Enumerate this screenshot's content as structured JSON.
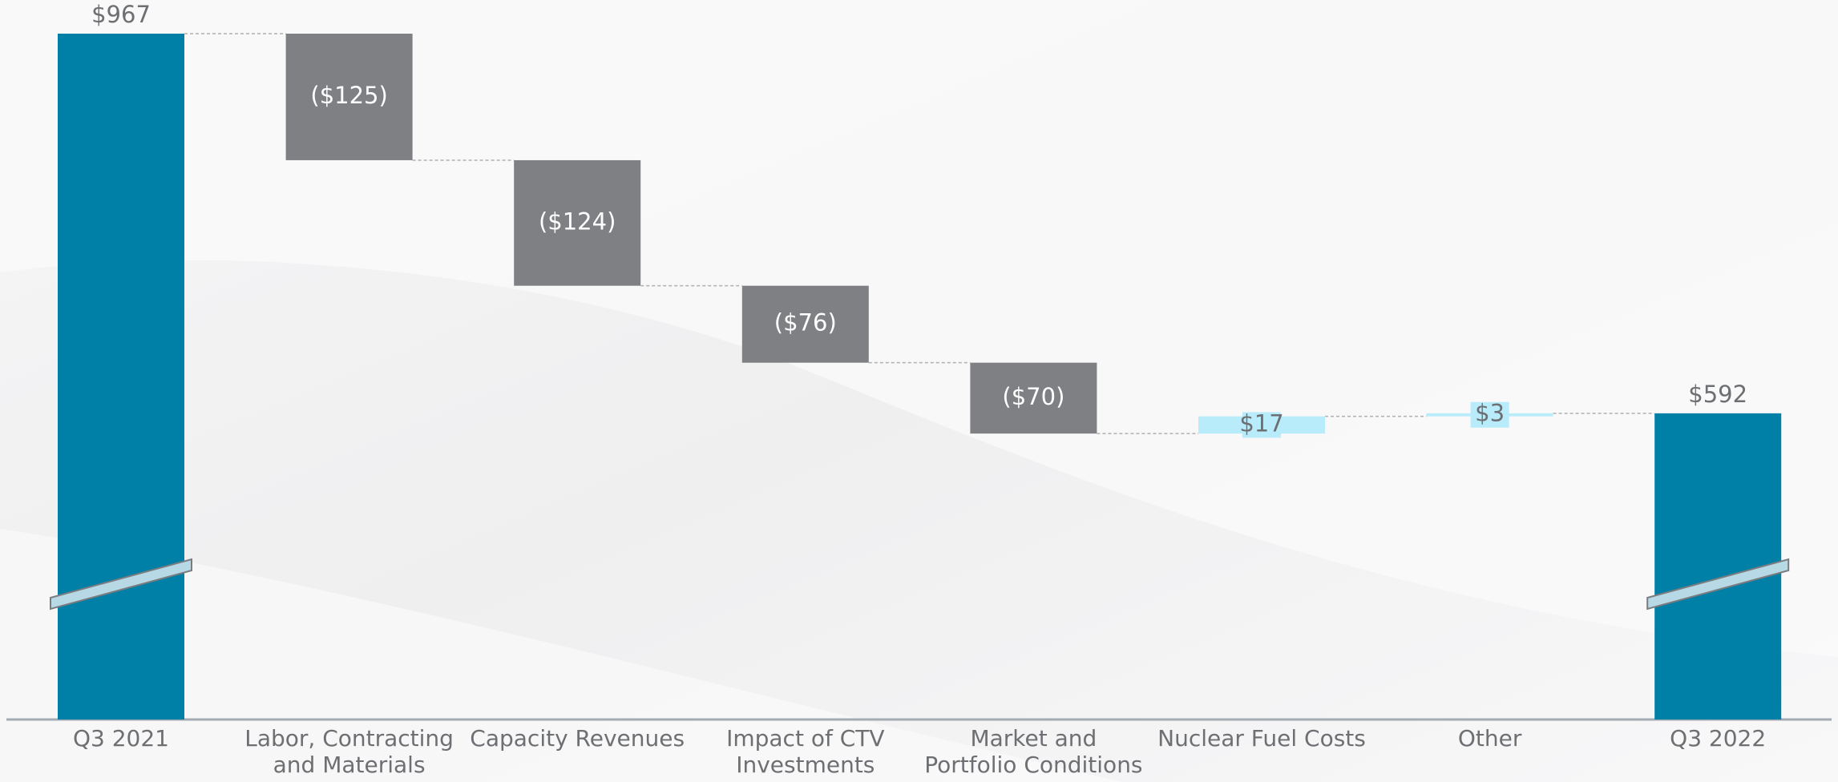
{
  "chart_data": {
    "type": "waterfall",
    "categories": [
      "Q3 2021",
      "Labor, Contracting\nand Materials",
      "Capacity Revenues",
      "Impact of CTV\nInvestments",
      "Market and\nPortfolio Conditions",
      "Nuclear Fuel Costs",
      "Other",
      "Q3 2022"
    ],
    "values": [
      967,
      -125,
      -124,
      -76,
      -70,
      17,
      3,
      592
    ],
    "value_labels": [
      "$967",
      "($125)",
      "($124)",
      "($76)",
      "($70)",
      "$17",
      "$3",
      "$592"
    ],
    "total_color": "#007fa7",
    "decrease_color": "#7f8084",
    "increase_color": "#b9ecfa",
    "axis_break": true
  }
}
